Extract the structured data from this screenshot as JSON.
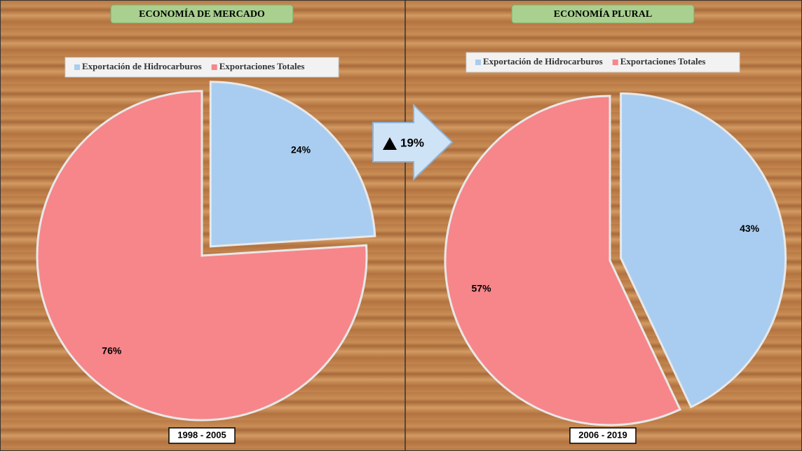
{
  "chart_data": [
    {
      "type": "pie",
      "title": "ECONOMÍA DE MERCADO",
      "subtitle": "1998 - 2005",
      "categories": [
        "Exportación de Hidrocarburos",
        "Exportaciones Totales"
      ],
      "values": [
        24,
        76
      ],
      "value_labels": [
        "24%",
        "76%"
      ],
      "colors": [
        "#a9cdf0",
        "#f6868a"
      ]
    },
    {
      "type": "pie",
      "title": "ECONOMÍA PLURAL",
      "subtitle": "2006 - 2019",
      "categories": [
        "Exportación de Hidrocarburos",
        "Exportaciones Totales"
      ],
      "values": [
        43,
        57
      ],
      "value_labels": [
        "43%",
        "57%"
      ],
      "colors": [
        "#a9cdf0",
        "#f6868a"
      ]
    }
  ],
  "annotation": "19%"
}
